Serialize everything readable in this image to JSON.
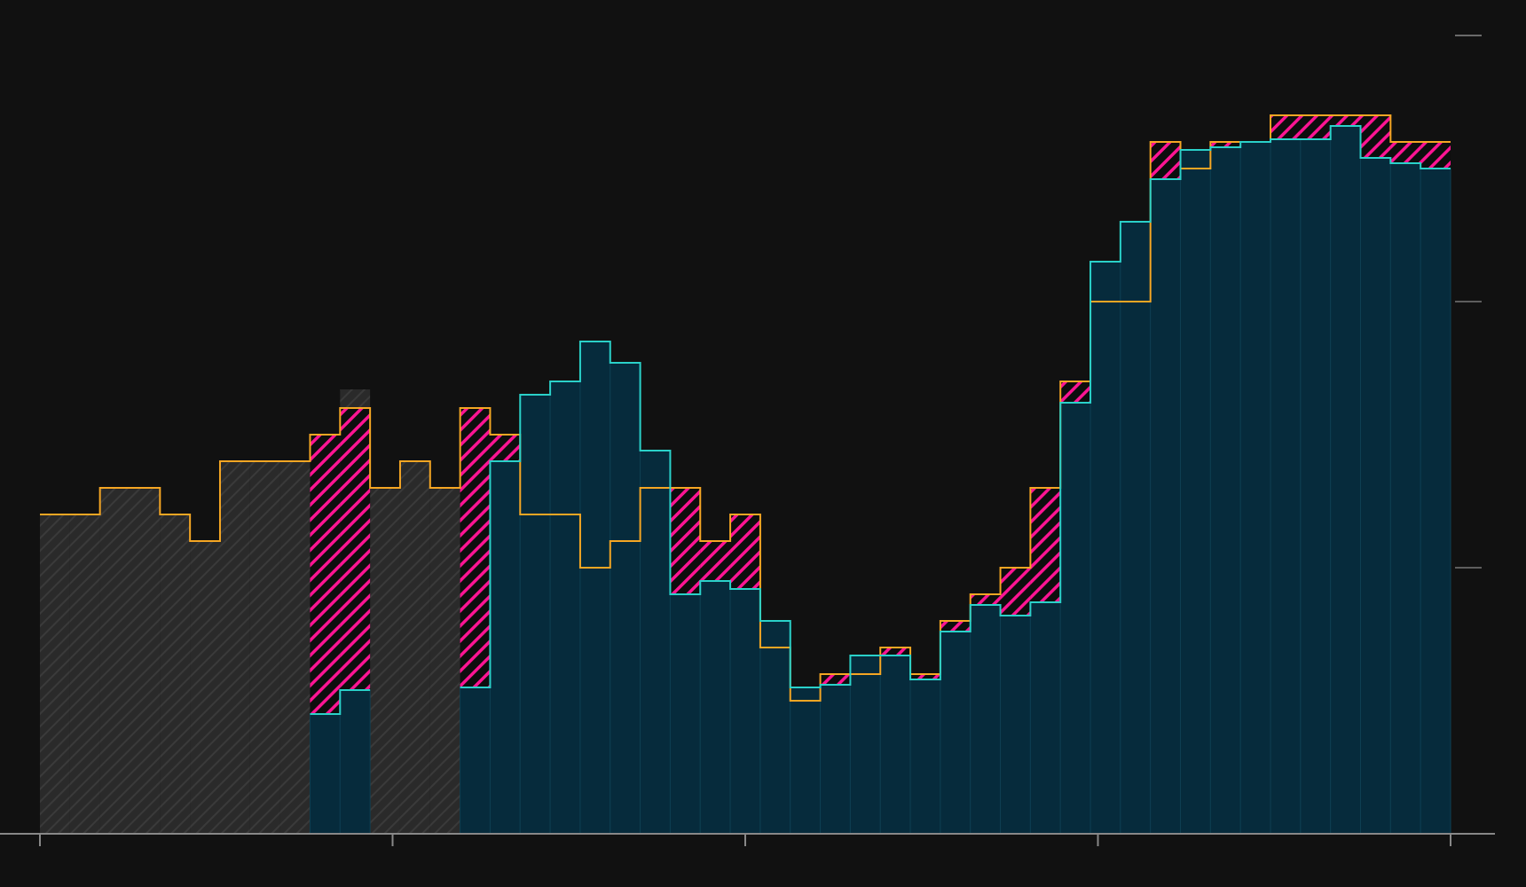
{
  "chart_data": {
    "type": "step-bar",
    "title": "",
    "xlabel": "",
    "ylabel": "",
    "x_ticks_count": 5,
    "y_ticks_count": 4,
    "ylim": [
      0,
      3
    ],
    "grid": false,
    "legend": "none",
    "colors": {
      "background": "#111111",
      "bar_fill": "#062b3c",
      "bar_divider": "#0e3f52",
      "hatched_fill": "#2a2a2a",
      "hatch_stroke": "#3a3a3a",
      "gap_fill": "#ff1493",
      "orange_line": "#f5a623",
      "cyan_line": "#2ad1c9",
      "axis": "#888888"
    },
    "series": [
      {
        "role": "orange-step-line",
        "values": [
          1.2,
          1.2,
          1.3,
          1.3,
          1.2,
          1.1,
          1.4,
          1.4,
          1.4,
          1.5,
          1.6,
          1.3,
          1.4,
          1.3,
          1.6,
          1.5,
          1.2,
          1.2,
          1.0,
          1.1,
          1.3,
          1.3,
          1.1,
          1.2,
          0.7,
          0.5,
          0.6,
          0.6,
          0.7,
          0.6,
          0.8,
          0.9,
          1.0,
          1.3,
          1.7,
          2.0,
          2.0,
          2.6,
          2.5,
          2.6,
          2.6,
          2.7,
          2.7,
          2.7,
          2.7,
          2.6,
          2.6
        ],
        "note_style": "stroke"
      },
      {
        "role": "cyan-step-line",
        "values": [
          null,
          null,
          null,
          null,
          null,
          null,
          null,
          null,
          null,
          0.45,
          0.54,
          null,
          null,
          null,
          0.55,
          1.4,
          1.65,
          1.7,
          1.85,
          1.77,
          1.44,
          0.9,
          0.95,
          0.92,
          0.8,
          0.55,
          0.56,
          0.67,
          0.67,
          0.58,
          0.76,
          0.86,
          0.82,
          0.87,
          1.62,
          2.15,
          2.3,
          2.46,
          2.57,
          2.58,
          2.6,
          2.61,
          2.61,
          2.66,
          2.54,
          2.52,
          2.5
        ]
      },
      {
        "role": "hatched-gray-bars",
        "values": [
          1.2,
          1.2,
          1.3,
          1.3,
          1.2,
          1.1,
          1.4,
          1.4,
          1.4,
          1.5,
          1.67,
          1.3,
          1.4,
          1.3,
          1.05
        ]
      }
    ]
  }
}
